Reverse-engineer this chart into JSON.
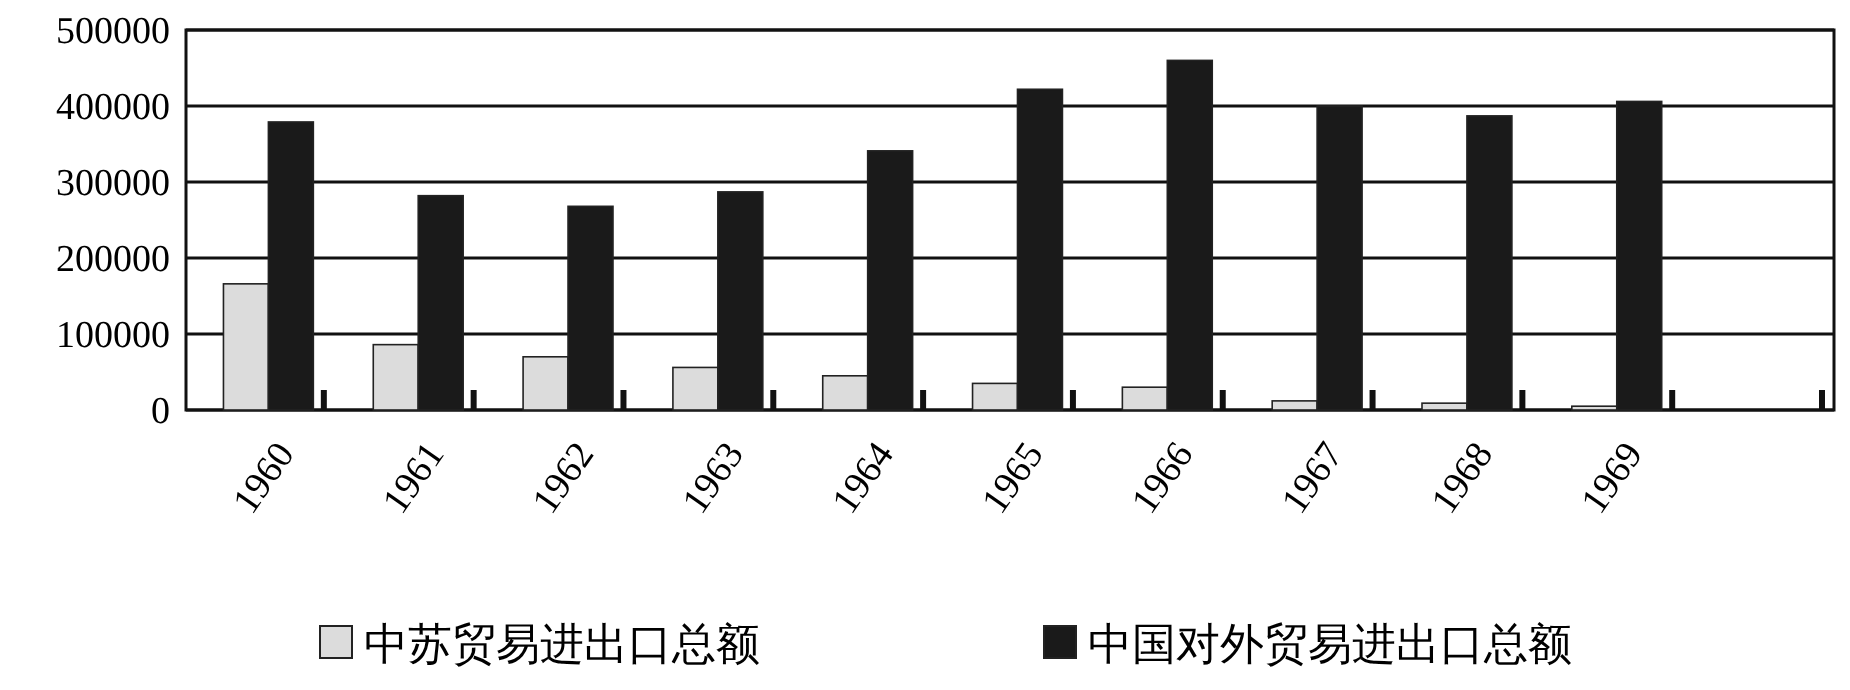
{
  "chart_data": {
    "type": "bar",
    "categories": [
      "1960",
      "1961",
      "1962",
      "1963",
      "1964",
      "1965",
      "1966",
      "1967",
      "1968",
      "1969"
    ],
    "series": [
      {
        "name": "中苏贸易进出口总额",
        "color": "#dcdcdc",
        "values": [
          166000,
          86000,
          70000,
          56000,
          45000,
          35000,
          30000,
          12000,
          9000,
          5000
        ]
      },
      {
        "name": "中国对外贸易进出口总额",
        "color": "#1a1a1a",
        "values": [
          379000,
          282000,
          268000,
          287000,
          341000,
          422000,
          460000,
          400000,
          387000,
          406000
        ]
      }
    ],
    "ylim": [
      0,
      500000
    ],
    "yticks": [
      0,
      100000,
      200000,
      300000,
      400000,
      500000
    ],
    "grid": "y",
    "legend": "bottom"
  }
}
